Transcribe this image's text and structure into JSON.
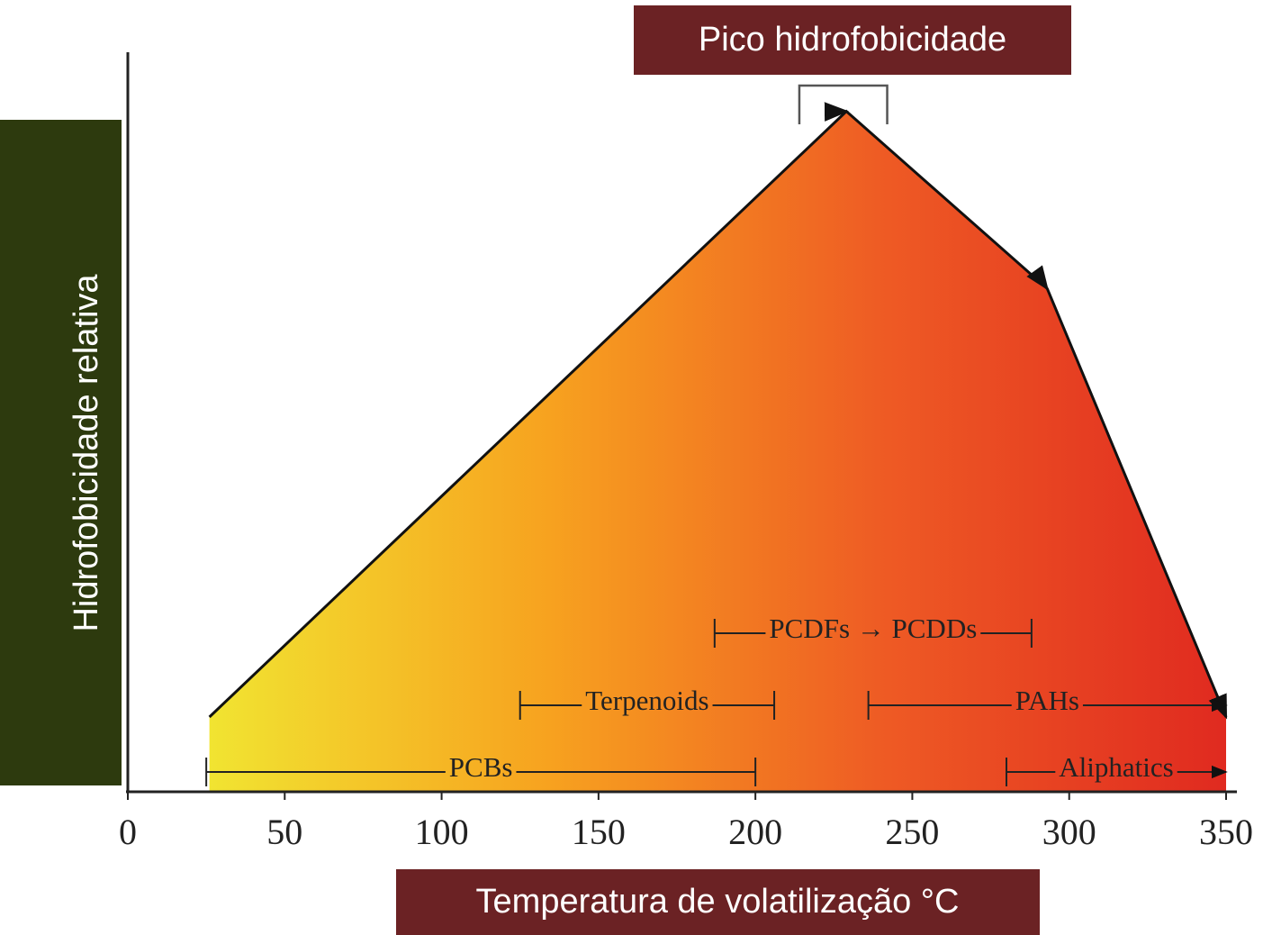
{
  "chart_data": {
    "type": "area",
    "title": "Pico hidrofobicidade",
    "x_label": "Temperatura de volatilização °C",
    "y_label": "Hidrofobicidade relativa",
    "x": [
      26,
      229,
      293,
      350
    ],
    "values": [
      10,
      92,
      68,
      10
    ],
    "colors": [
      "#f1e431",
      "#f7a21f",
      "#ee5a24",
      "#e02a20"
    ],
    "xlim": [
      0,
      350
    ],
    "xticks": [
      0,
      50,
      100,
      150,
      200,
      250,
      300,
      350
    ],
    "ylim": [
      0,
      100
    ],
    "peak_range": [
      214,
      242
    ],
    "ranges": [
      {
        "name": "PCBs",
        "start": 25,
        "end": 200,
        "arrow": false
      },
      {
        "name": "Aliphatics",
        "start": 280,
        "end": 350,
        "arrow": true
      },
      {
        "name": "Terpenoids",
        "start": 125,
        "end": 206,
        "arrow": false
      },
      {
        "name": "PAHs",
        "start": 236,
        "end": 350,
        "arrow": true
      },
      {
        "name": "PCDFs → PCDDs",
        "start": 187,
        "end": 288,
        "arrow": false
      }
    ]
  }
}
